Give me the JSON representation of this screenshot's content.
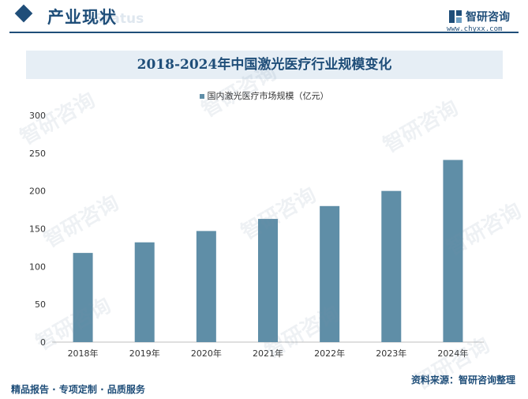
{
  "header": {
    "title": "产业现状",
    "watermark": "Status",
    "brand_name": "智研咨询",
    "brand_url": "www.chyxx.com"
  },
  "footer": {
    "left": "精品报告 · 专项定制 · 品质服务",
    "right": "资料来源：智研咨询整理"
  },
  "watermark_text": "智研咨询",
  "colors": {
    "bar": "#5f8ea7",
    "brand": "#1f4e79",
    "title_band": "#e6eef5"
  },
  "chart_data": {
    "type": "bar",
    "title": "2018-2024年中国激光医疗行业规模变化",
    "categories": [
      "2018年",
      "2019年",
      "2020年",
      "2021年",
      "2022年",
      "2023年",
      "2024年"
    ],
    "series": [
      {
        "name": "国内激光医疗市场规模（亿元）",
        "values": [
          118,
          132,
          147,
          163,
          180,
          200,
          241
        ]
      }
    ],
    "ylim": [
      0,
      300
    ],
    "yticks": [
      0,
      50,
      100,
      150,
      200,
      250,
      300
    ],
    "grid": false,
    "legend": "top-center"
  }
}
